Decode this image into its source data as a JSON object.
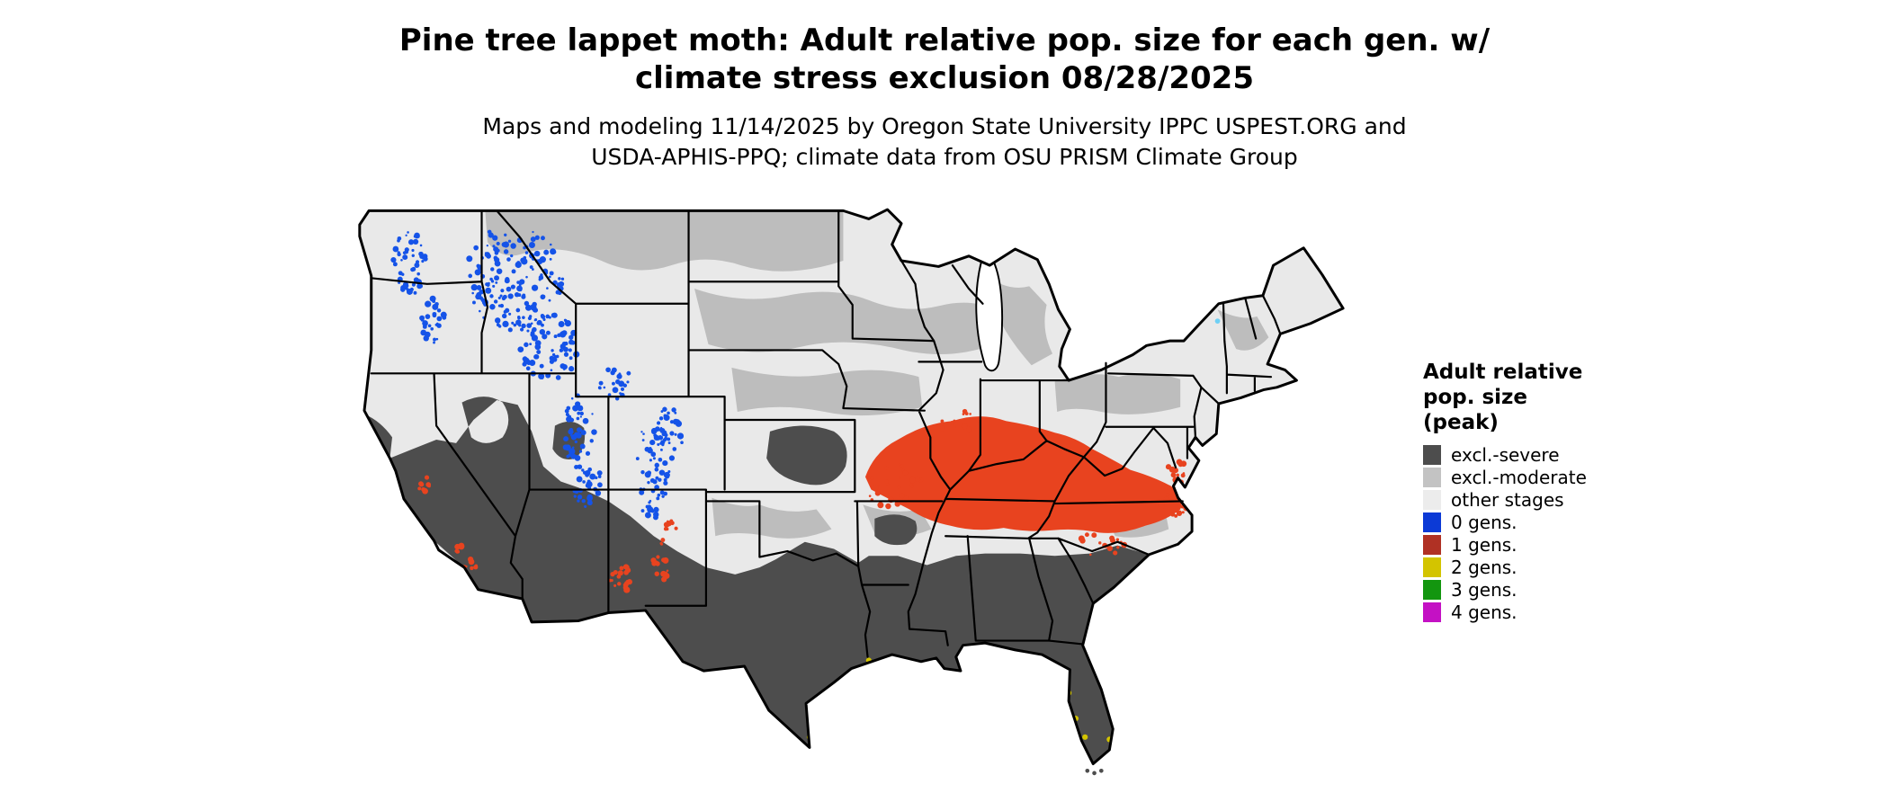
{
  "title": {
    "line1": "Pine tree lappet moth: Adult relative pop. size for each gen. w/",
    "line2": "climate stress exclusion 08/28/2025"
  },
  "subtitle": {
    "line1": "Maps and modeling 11/14/2025 by Oregon State University IPPC USPEST.ORG and",
    "line2": "USDA-APHIS-PPQ; climate data from OSU PRISM Climate Group"
  },
  "legend": {
    "title_line1": "Adult relative",
    "title_line2": "pop. size",
    "title_line3": "(peak)",
    "items": [
      {
        "label": "excl.-severe",
        "color": "#4d4d4d"
      },
      {
        "label": "excl.-moderate",
        "color": "#c3c3c3"
      },
      {
        "label": "other stages",
        "color": "#ececec"
      },
      {
        "label": "0 gens.",
        "color": "#0c3ad6"
      },
      {
        "label": "1 gens.",
        "color": "#b03124"
      },
      {
        "label": "2 gens.",
        "color": "#d3c400"
      },
      {
        "label": "3 gens.",
        "color": "#13960f"
      },
      {
        "label": "4 gens.",
        "color": "#c411c4"
      }
    ]
  },
  "map": {
    "name": "Contiguous United States",
    "palette": {
      "excl_severe": "#4d4d4d",
      "excl_moderate": "#bdbdbd",
      "other_stages": "#e9e9e9",
      "gens0_blue": "#1553e8",
      "gens1_orange": "#e8431f",
      "gens2_yellow": "#d3c400",
      "cyan_speck": "#6fd0f5",
      "water": "#ffffff",
      "border": "#000000"
    }
  }
}
